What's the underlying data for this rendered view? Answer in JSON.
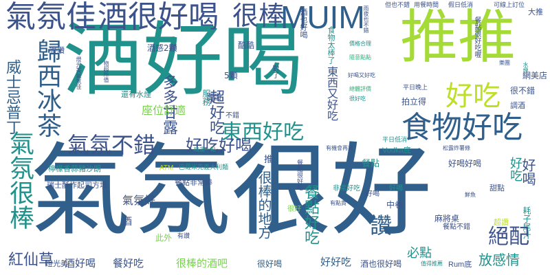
{
  "colors": {
    "background": "#ffffff",
    "dark_blue": "#2f5f8a",
    "deep_purple": "#440154",
    "purple": "#414487",
    "slate": "#3b528b",
    "teal": "#21918c",
    "sea_green": "#22a884",
    "green": "#2fb47c",
    "lime_green": "#7ad151",
    "yellow_green": "#a5db36",
    "yellow": "#bddf26",
    "bright_yellow": "#d8e219"
  },
  "words": [
    {
      "id": "w01",
      "text": "酒好喝"
    },
    {
      "id": "w02",
      "text": "推推"
    },
    {
      "id": "w03",
      "text": "氣氛很好"
    },
    {
      "id": "w04",
      "text": "氣氛佳"
    },
    {
      "id": "w05",
      "text": "酒很好喝"
    },
    {
      "id": "w06",
      "text": "很棒"
    },
    {
      "id": "w07",
      "text": "MUIM"
    },
    {
      "id": "w08",
      "text": "食物好吃"
    },
    {
      "id": "w09",
      "text": "好吃"
    },
    {
      "id": "w10",
      "text": "東西好吃"
    },
    {
      "id": "w11",
      "text": "氣氛不錯"
    },
    {
      "id": "w12",
      "text": "好吃好喝"
    },
    {
      "id": "w13",
      "text": "歸西冰茶"
    },
    {
      "id": "w14",
      "text": "氣氛很棒"
    },
    {
      "id": "w15",
      "text": "威士忌普丁"
    },
    {
      "id": "w16",
      "text": "紅仙草"
    },
    {
      "id": "w17",
      "text": "多多甘露"
    },
    {
      "id": "w18",
      "text": "座位舒適"
    },
    {
      "id": "w19",
      "text": "絕配"
    },
    {
      "id": "w20",
      "text": "讚"
    },
    {
      "id": "w21",
      "text": "好喝"
    },
    {
      "id": "w22",
      "text": "好吃"
    },
    {
      "id": "w23",
      "text": "放感情"
    },
    {
      "id": "w24",
      "text": "超好吃"
    },
    {
      "id": "w25",
      "text": "東西又好吃"
    },
    {
      "id": "w26",
      "text": "餐點好吃"
    },
    {
      "id": "w27",
      "text": "很棒的地方"
    },
    {
      "id": "w28",
      "text": "氣氛好"
    },
    {
      "id": "w29",
      "text": "酒好喝"
    },
    {
      "id": "w30",
      "text": "餐好吃"
    },
    {
      "id": "w31",
      "text": "很棒的酒吧"
    },
    {
      "id": "w32",
      "text": "很好喝"
    },
    {
      "id": "w33",
      "text": "好好吃"
    },
    {
      "id": "w34",
      "text": "酒也很好喝"
    },
    {
      "id": "w35",
      "text": "必點"
    },
    {
      "id": "w36",
      "text": "網美店"
    },
    {
      "id": "w37",
      "text": "很不錯"
    },
    {
      "id": "w38",
      "text": "餐點很好吃"
    },
    {
      "id": "w39",
      "text": "酒感2顆"
    },
    {
      "id": "w40",
      "text": "5顆"
    },
    {
      "id": "w41",
      "text": "酷酷"
    },
    {
      "id": "w42",
      "text": "服務"
    },
    {
      "id": "w43",
      "text": "拍立得"
    },
    {
      "id": "w44",
      "text": "餐點"
    },
    {
      "id": "w45",
      "text": "推"
    },
    {
      "id": "w46",
      "text": "中卷"
    },
    {
      "id": "w47",
      "text": "麻將桌"
    },
    {
      "id": "w48",
      "text": "超讚"
    },
    {
      "id": "w49",
      "text": "甜點"
    },
    {
      "id": "w50",
      "text": "好喝好喝"
    },
    {
      "id": "w51",
      "text": "耗子尾汁"
    },
    {
      "id": "w52",
      "text": "Vodka底"
    },
    {
      "id": "w53",
      "text": "Rum底"
    },
    {
      "id": "w54",
      "text": "大推"
    },
    {
      "id": "w55",
      "text": "很讚"
    },
    {
      "id": "w56",
      "text": "酒"
    },
    {
      "id": "w57",
      "text": "此外"
    },
    {
      "id": "w58",
      "text": "檸檬香蒜豬沙朗"
    },
    {
      "id": "w59",
      "text": "瑞士酥炸起司方塊"
    },
    {
      "id": "w60",
      "text": "ATM"
    },
    {
      "id": "w61",
      "text": "巴薩米克義大利麵"
    },
    {
      "id": "w62",
      "text": "燈光美"
    },
    {
      "id": "w63",
      "text": "調酒"
    },
    {
      "id": "w64",
      "text": "對了"
    },
    {
      "id": "w65",
      "text": "很好"
    },
    {
      "id": "w66",
      "text": "讚讚"
    },
    {
      "id": "w67",
      "text": "不錯"
    },
    {
      "id": "w68",
      "text": "平日晚上"
    },
    {
      "id": "w69",
      "text": "平日低消"
    },
    {
      "id": "w70",
      "text": "假日低消"
    },
    {
      "id": "w71",
      "text": "用餐時間"
    },
    {
      "id": "w72",
      "text": "可線上訂位"
    },
    {
      "id": "w73",
      "text": "餐點很好吃喔"
    },
    {
      "id": "w74",
      "text": "好喝"
    },
    {
      "id": "w75",
      "text": "酒也好喝"
    },
    {
      "id": "w76",
      "text": "食物太棒了"
    },
    {
      "id": "w77",
      "text": "還有水煙"
    },
    {
      "id": "w78",
      "text": "有讚"
    },
    {
      "id": "w79",
      "text": "好喝"
    },
    {
      "id": "w80",
      "text": "但也不錯"
    },
    {
      "id": "w81",
      "text": "餐點不錯"
    },
    {
      "id": "w82",
      "text": "非常好吃"
    },
    {
      "id": "w83",
      "text": "餐點非常棒"
    },
    {
      "id": "w84",
      "text": "雨夜也不錯"
    },
    {
      "id": "w85",
      "text": "燈光美氣氛佳"
    },
    {
      "id": "w86",
      "text": "雞肉很好吃"
    },
    {
      "id": "w87",
      "text": "價格合理"
    },
    {
      "id": "w88",
      "text": "有點貴"
    },
    {
      "id": "w89",
      "text": "鮮魚"
    },
    {
      "id": "w90",
      "text": "隨意點點"
    },
    {
      "id": "w91",
      "text": "精選一點"
    },
    {
      "id": "w92",
      "text": "有機會再來"
    },
    {
      "id": "w93",
      "text": "水煙"
    },
    {
      "id": "w94",
      "text": "樂團"
    },
    {
      "id": "w95",
      "text": "松露炸薯條"
    },
    {
      "id": "w96",
      "text": "總體評價"
    },
    {
      "id": "w97",
      "text": "物超所值"
    },
    {
      "id": "w98",
      "text": "好喝又好吃"
    },
    {
      "id": "w99",
      "text": "很好吃"
    },
    {
      "id": "w100",
      "text": "值得推薦"
    }
  ]
}
